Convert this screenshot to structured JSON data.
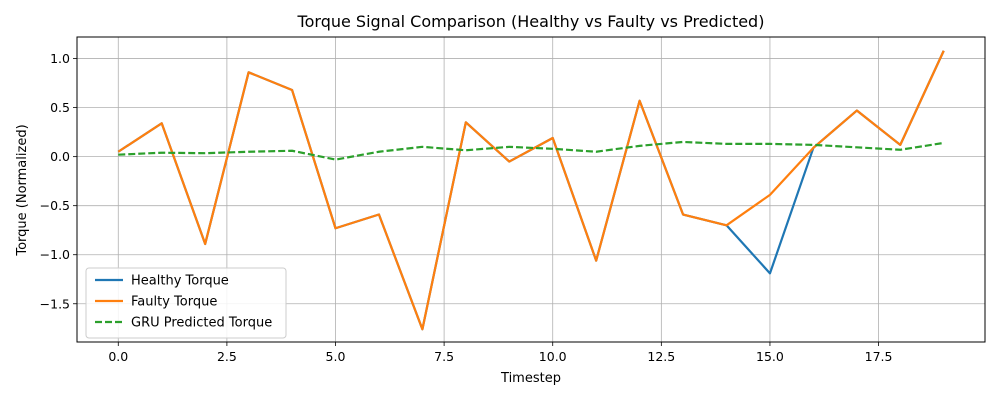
{
  "chart_data": {
    "type": "line",
    "title": "Torque Signal Comparison (Healthy vs Faulty vs Predicted)",
    "xlabel": "Timestep",
    "ylabel": "Torque (Normalized)",
    "xlim": [
      -0.95,
      19.95
    ],
    "ylim": [
      -1.89,
      1.22
    ],
    "xticks": [
      0.0,
      2.5,
      5.0,
      7.5,
      10.0,
      12.5,
      15.0,
      17.5
    ],
    "xtick_labels": [
      "0.0",
      "2.5",
      "5.0",
      "7.5",
      "10.0",
      "12.5",
      "15.0",
      "17.5"
    ],
    "yticks": [
      -1.5,
      -1.0,
      -0.5,
      0.0,
      0.5,
      1.0
    ],
    "ytick_labels": [
      "−1.5",
      "−1.0",
      "−0.5",
      "0.0",
      "0.5",
      "1.0"
    ],
    "grid": true,
    "legend_position": "lower-left",
    "x": [
      0,
      1,
      2,
      3,
      4,
      5,
      6,
      7,
      8,
      9,
      10,
      11,
      12,
      13,
      14,
      15,
      16,
      17,
      18,
      19
    ],
    "series": [
      {
        "name": "Healthy Torque",
        "color": "#1f77b4",
        "style": "solid",
        "values": [
          0.05,
          0.34,
          -0.89,
          0.86,
          0.68,
          -0.73,
          -0.59,
          -1.76,
          0.35,
          -0.05,
          0.19,
          -1.06,
          0.57,
          -0.59,
          -0.7,
          -1.19,
          0.09,
          0.47,
          0.12,
          1.08
        ]
      },
      {
        "name": "Faulty Torque",
        "color": "#ff7f0e",
        "style": "solid",
        "values": [
          0.05,
          0.34,
          -0.89,
          0.86,
          0.68,
          -0.73,
          -0.59,
          -1.76,
          0.35,
          -0.05,
          0.19,
          -1.06,
          0.57,
          -0.59,
          -0.7,
          -0.39,
          0.09,
          0.47,
          0.12,
          1.08
        ]
      },
      {
        "name": "GRU Predicted Torque",
        "color": "#2ca02c",
        "style": "dashed",
        "values": [
          0.02,
          0.04,
          0.035,
          0.05,
          0.06,
          -0.03,
          0.05,
          0.1,
          0.065,
          0.1,
          0.08,
          0.05,
          0.11,
          0.15,
          0.13,
          0.13,
          0.12,
          0.095,
          0.07,
          0.14
        ]
      }
    ]
  }
}
